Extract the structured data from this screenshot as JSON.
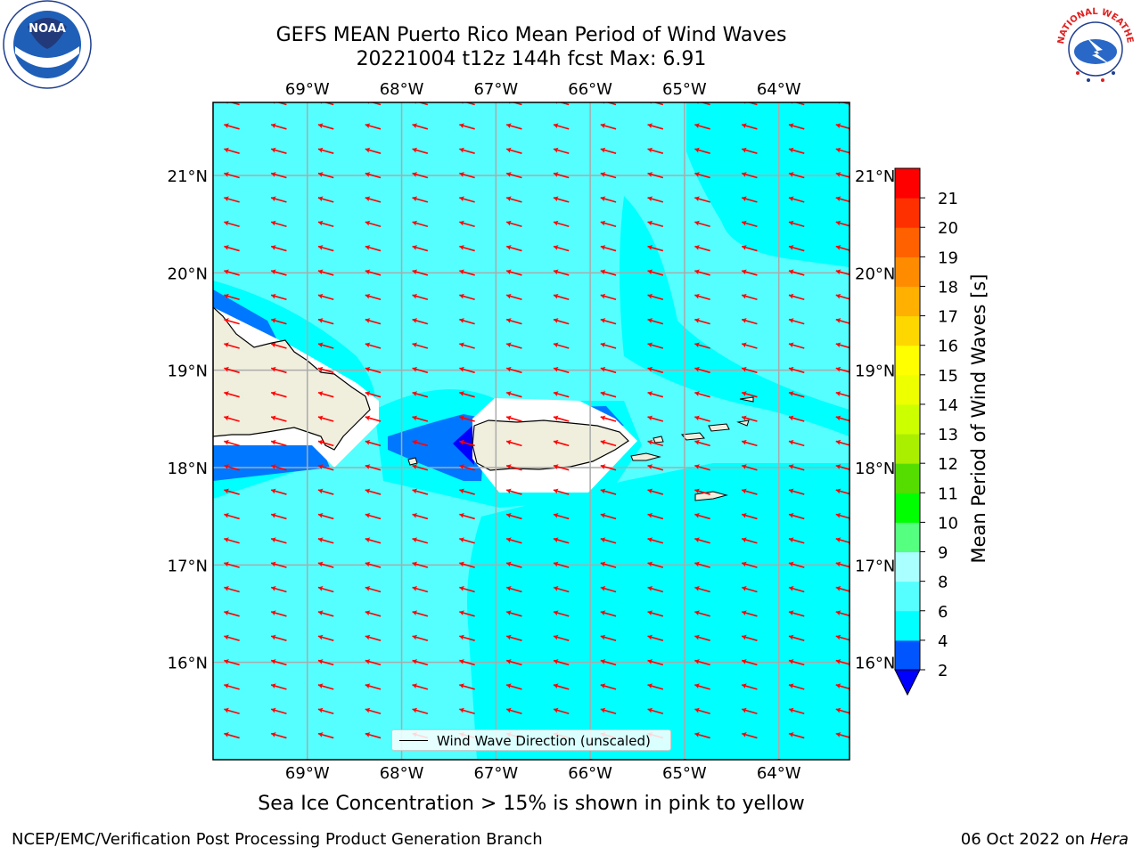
{
  "title": {
    "line1": "GEFS MEAN Puerto Rico Mean Period of Wind Waves",
    "line2": "20221004 t12z 144h fcst   Max: 6.91"
  },
  "map": {
    "lon_ticks": [
      "69°W",
      "68°W",
      "67°W",
      "66°W",
      "65°W",
      "64°W"
    ],
    "lat_ticks": [
      "21°N",
      "20°N",
      "19°N",
      "18°N",
      "17°N",
      "16°N"
    ],
    "extent": {
      "lon_min": -70.0,
      "lon_max": -63.25,
      "lat_min": 15.0,
      "lat_max": 21.75
    },
    "wind_direction": "from east-northeast",
    "colors": {
      "ocean_6_8": "#55ffff",
      "ocean_4_6": "#00ffff",
      "land": "#f0eedd",
      "arrow": "#ff0000"
    }
  },
  "legend": {
    "label": "Wind Wave Direction (unscaled)"
  },
  "colorbar": {
    "title": "Mean Period of Wind Waves [s]",
    "ticks": [
      "2",
      "4",
      "6",
      "8",
      "9",
      "10",
      "11",
      "12",
      "13",
      "14",
      "15",
      "16",
      "17",
      "18",
      "19",
      "20",
      "21"
    ],
    "colors": [
      "#0055ff",
      "#00ffff",
      "#55ffff",
      "#aaffff",
      "#55ff80",
      "#00ff00",
      "#55dd00",
      "#aaee00",
      "#ccff00",
      "#eeff00",
      "#ffff00",
      "#ffd700",
      "#ffb000",
      "#ff8c00",
      "#ff6000",
      "#ff3000",
      "#ff0000"
    ],
    "under_color": "#0000ff"
  },
  "caption": "Sea Ice Concentration > 15% is shown in pink to yellow",
  "footer": {
    "left": "NCEP/EMC/Verification Post Processing Product Generation Branch",
    "right_date": "06 Oct 2022 on",
    "right_host": "Hera"
  },
  "logos": {
    "left": "NOAA",
    "right": "NATIONAL WEATHER SERVICE"
  }
}
